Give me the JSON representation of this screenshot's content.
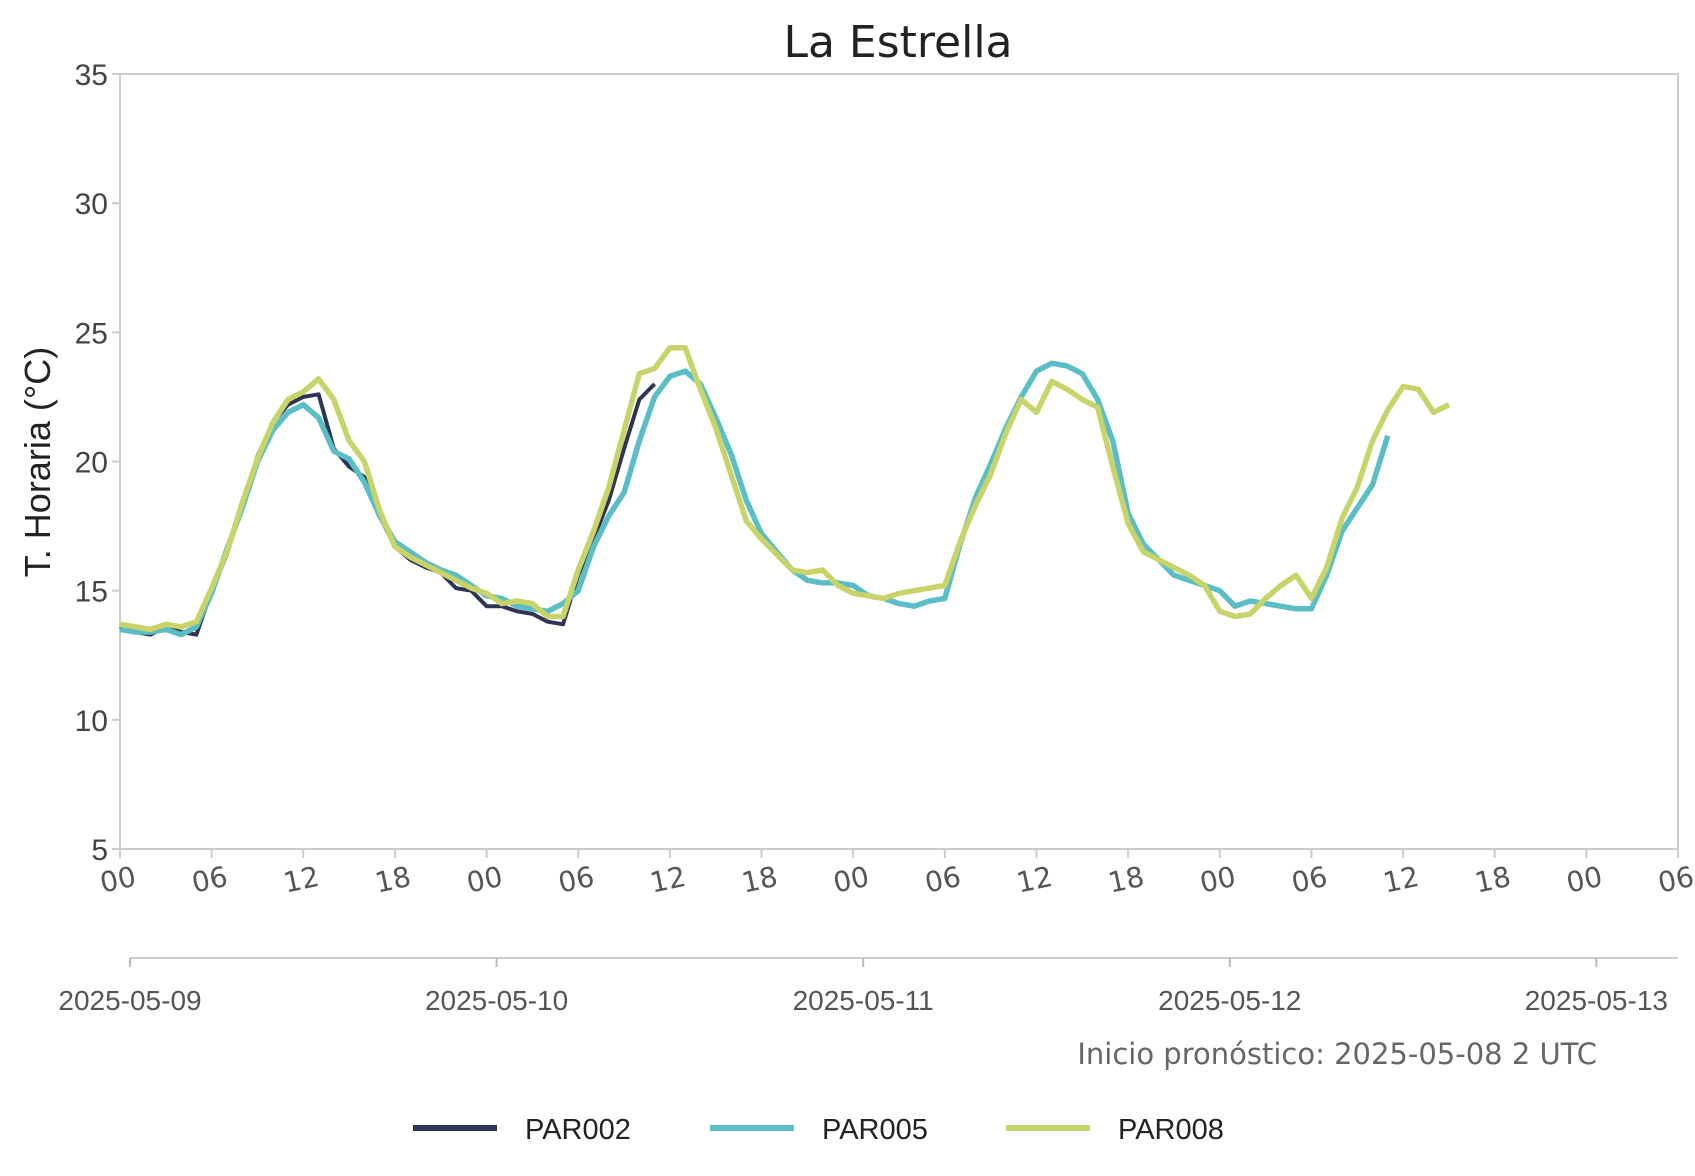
{
  "chart_data": {
    "type": "line",
    "title": "La Estrella",
    "ylabel": "T. Horaria (°C)",
    "xlabel": "",
    "ylim": [
      5,
      35
    ],
    "yticks": [
      "5",
      "10",
      "15",
      "20",
      "25",
      "30",
      "35"
    ],
    "hour_ticks": [
      "00",
      "06",
      "12",
      "18",
      "00",
      "06",
      "12",
      "18",
      "00",
      "06",
      "12",
      "18",
      "00",
      "06",
      "12",
      "18",
      "00",
      "06"
    ],
    "date_ticks": [
      "2025-05-09",
      "2025-05-10",
      "2025-05-11",
      "2025-05-12",
      "2025-05-13"
    ],
    "x_unit": "hours from 2025-05-09 00",
    "xlim": [
      0,
      102
    ],
    "annotation": "Inicio pronóstico: 2025-05-08 2 UTC",
    "grid": false,
    "legend_position": "bottom",
    "series": [
      {
        "name": "PAR002",
        "color": "#2f3454",
        "x": [
          0,
          1,
          2,
          3,
          4,
          5,
          6,
          7,
          8,
          9,
          10,
          11,
          12,
          13,
          14,
          15,
          16,
          17,
          18,
          19,
          20,
          21,
          22,
          23,
          24,
          25,
          26,
          27,
          28,
          29,
          30,
          31,
          32,
          33,
          34,
          35
        ],
        "y": [
          13.6,
          13.4,
          13.3,
          13.6,
          13.4,
          13.3,
          15.0,
          16.4,
          18.3,
          20.2,
          21.5,
          22.2,
          22.5,
          22.6,
          20.5,
          19.8,
          19.4,
          17.9,
          16.7,
          16.2,
          15.9,
          15.7,
          15.1,
          15.0,
          14.4,
          14.4,
          14.2,
          14.1,
          13.8,
          13.7,
          15.6,
          17.0,
          18.5,
          20.5,
          22.4,
          23.0
        ]
      },
      {
        "name": "PAR005",
        "color": "#5bbdc6",
        "x": [
          0,
          1,
          2,
          3,
          4,
          5,
          6,
          7,
          8,
          9,
          10,
          11,
          12,
          13,
          14,
          15,
          16,
          17,
          18,
          19,
          20,
          21,
          22,
          23,
          24,
          25,
          26,
          27,
          28,
          29,
          30,
          31,
          32,
          33,
          34,
          35,
          36,
          37,
          38,
          39,
          40,
          41,
          42,
          43,
          44,
          45,
          46,
          47,
          48,
          49,
          50,
          51,
          52,
          53,
          54,
          55,
          56,
          57,
          58,
          59,
          60,
          61,
          62,
          63,
          64,
          65,
          66,
          67,
          68,
          69,
          70,
          71,
          72,
          73,
          74,
          75,
          76,
          77,
          78,
          79,
          80,
          81,
          82,
          83
        ],
        "y": [
          13.5,
          13.4,
          13.4,
          13.5,
          13.3,
          13.6,
          14.9,
          16.6,
          18.2,
          20.0,
          21.2,
          21.9,
          22.2,
          21.7,
          20.4,
          20.1,
          19.2,
          17.9,
          16.9,
          16.5,
          16.1,
          15.8,
          15.6,
          15.2,
          14.8,
          14.7,
          14.4,
          14.3,
          14.2,
          14.5,
          15.0,
          16.7,
          17.9,
          18.8,
          20.8,
          22.5,
          23.3,
          23.5,
          23.0,
          21.7,
          20.3,
          18.5,
          17.2,
          16.5,
          15.8,
          15.4,
          15.3,
          15.3,
          15.2,
          14.8,
          14.7,
          14.5,
          14.4,
          14.6,
          14.7,
          16.8,
          18.6,
          19.9,
          21.3,
          22.5,
          23.5,
          23.8,
          23.7,
          23.4,
          22.4,
          20.8,
          18.0,
          16.8,
          16.2,
          15.6,
          15.4,
          15.2,
          15.0,
          14.4,
          14.6,
          14.5,
          14.4,
          14.3,
          14.3,
          15.6,
          17.3,
          18.2,
          19.1,
          21.0
        ]
      },
      {
        "name": "PAR008",
        "color": "#c8d46a",
        "x": [
          0,
          1,
          2,
          3,
          4,
          5,
          6,
          7,
          8,
          9,
          10,
          11,
          12,
          13,
          14,
          15,
          16,
          17,
          18,
          19,
          20,
          21,
          22,
          23,
          24,
          25,
          26,
          27,
          28,
          29,
          30,
          31,
          32,
          33,
          34,
          35,
          36,
          37,
          38,
          39,
          40,
          41,
          42,
          43,
          44,
          45,
          46,
          47,
          48,
          49,
          50,
          51,
          52,
          53,
          54,
          55,
          56,
          57,
          58,
          59,
          60,
          61,
          62,
          63,
          64,
          65,
          66,
          67,
          68,
          69,
          70,
          71,
          72,
          73,
          74,
          75,
          76,
          77,
          78,
          79,
          80,
          81,
          82,
          83,
          84,
          85,
          86,
          87
        ],
        "y": [
          13.7,
          13.6,
          13.5,
          13.7,
          13.6,
          13.8,
          15.1,
          16.5,
          18.4,
          20.1,
          21.5,
          22.4,
          22.7,
          23.2,
          22.4,
          20.8,
          20.0,
          18.1,
          16.7,
          16.3,
          16.0,
          15.7,
          15.4,
          15.1,
          14.9,
          14.5,
          14.6,
          14.5,
          14.0,
          14.0,
          15.8,
          17.3,
          19.0,
          21.2,
          23.4,
          23.6,
          24.4,
          24.4,
          22.8,
          21.3,
          19.5,
          17.7,
          17.0,
          16.4,
          15.8,
          15.7,
          15.8,
          15.2,
          14.9,
          14.8,
          14.7,
          14.9,
          15.0,
          15.1,
          15.2,
          16.9,
          18.3,
          19.5,
          21.1,
          22.4,
          21.9,
          23.1,
          22.8,
          22.4,
          22.1,
          19.8,
          17.6,
          16.5,
          16.2,
          15.9,
          15.6,
          15.2,
          14.2,
          14.0,
          14.1,
          14.7,
          15.2,
          15.6,
          14.7,
          15.9,
          17.8,
          19.0,
          20.8,
          22.0,
          22.9,
          22.8,
          21.9,
          22.2
        ]
      }
    ]
  }
}
